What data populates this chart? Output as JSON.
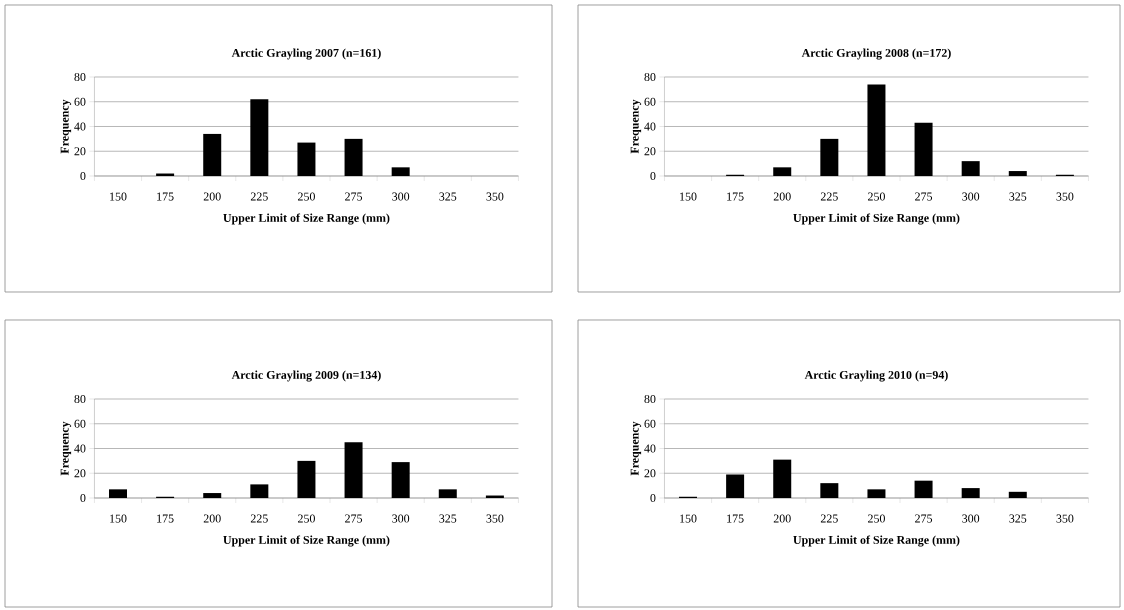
{
  "chart_data": [
    {
      "type": "bar",
      "title": "Arctic Grayling 2007 (n=161)",
      "xlabel": "Upper Limit of Size Range (mm)",
      "ylabel": "Frequency",
      "categories": [
        "150",
        "175",
        "200",
        "225",
        "250",
        "275",
        "300",
        "325",
        "350"
      ],
      "values": [
        0,
        2,
        34,
        62,
        27,
        30,
        7,
        0,
        0
      ],
      "color": "#000000",
      "ylim": [
        0,
        80
      ],
      "yticks": [
        0,
        20,
        40,
        60,
        80
      ],
      "grid": "y"
    },
    {
      "type": "bar",
      "title": "Arctic Grayling 2008 (n=172)",
      "xlabel": "Upper Limit of Size Range (mm)",
      "ylabel": "Frequency",
      "categories": [
        "150",
        "175",
        "200",
        "225",
        "250",
        "275",
        "300",
        "325",
        "350"
      ],
      "values": [
        0,
        1,
        7,
        30,
        74,
        43,
        12,
        4,
        1
      ],
      "color": "#000000",
      "ylim": [
        0,
        80
      ],
      "yticks": [
        0,
        20,
        40,
        60,
        80
      ],
      "grid": "y"
    },
    {
      "type": "bar",
      "title": "Arctic Grayling 2009 (n=134)",
      "xlabel": "Upper Limit of Size Range (mm)",
      "ylabel": "Frequency",
      "categories": [
        "150",
        "175",
        "200",
        "225",
        "250",
        "275",
        "300",
        "325",
        "350"
      ],
      "values": [
        7,
        1,
        4,
        11,
        30,
        45,
        29,
        7,
        2
      ],
      "color": "#000000",
      "ylim": [
        0,
        80
      ],
      "yticks": [
        0,
        20,
        40,
        60,
        80
      ],
      "grid": "y"
    },
    {
      "type": "bar",
      "title": "Arctic Grayling 2010 (n=94)",
      "xlabel": "Upper Limit of Size Range (mm)",
      "ylabel": "Frequency",
      "categories": [
        "150",
        "175",
        "200",
        "225",
        "250",
        "275",
        "300",
        "325",
        "350"
      ],
      "values": [
        1,
        19,
        31,
        12,
        7,
        14,
        8,
        5,
        0
      ],
      "color": "#000000",
      "ylim": [
        0,
        80
      ],
      "yticks": [
        0,
        20,
        40,
        60,
        80
      ],
      "grid": "y"
    }
  ]
}
